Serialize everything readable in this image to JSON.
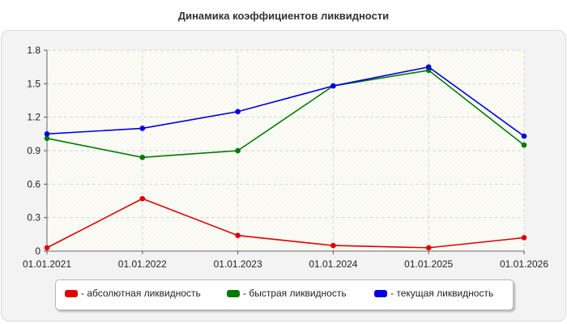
{
  "chart_data": {
    "type": "line",
    "title": "Динамика коэффициентов ликвидности",
    "xlabel": "",
    "ylabel": "",
    "categories": [
      "01.01.2021",
      "01.01.2022",
      "01.01.2023",
      "01.01.2024",
      "01.01.2025",
      "01.01.2026"
    ],
    "ylim": [
      0,
      1.8
    ],
    "yticks": [
      "0",
      "0.3",
      "0.6",
      "0.9",
      "1.2",
      "1.5",
      "1.8"
    ],
    "grid": true,
    "legend_position": "bottom",
    "series": [
      {
        "name": "- абсолютная ликвидность",
        "color": "#e00000",
        "values": [
          0.03,
          0.47,
          0.14,
          0.05,
          0.03,
          0.12
        ]
      },
      {
        "name": "- быстрая ликвидность",
        "color": "#007a00",
        "values": [
          1.01,
          0.84,
          0.9,
          1.48,
          1.62,
          0.95
        ]
      },
      {
        "name": "- текущая ликвидность",
        "color": "#0000e0",
        "values": [
          1.05,
          1.1,
          1.25,
          1.48,
          1.65,
          1.03
        ]
      }
    ]
  }
}
